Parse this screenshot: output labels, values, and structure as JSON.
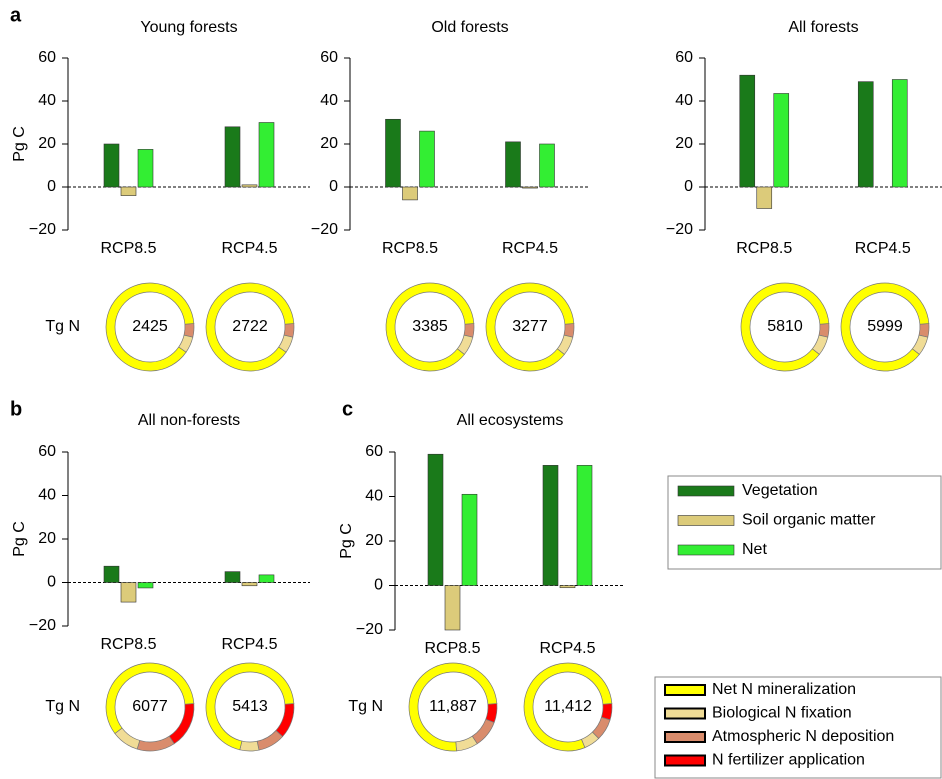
{
  "panel_labels": [
    "a",
    "b",
    "c"
  ],
  "chart_data": [
    {
      "type": "bar",
      "title": "Young forests",
      "ylabel": "Pg C",
      "categories": [
        "RCP8.5",
        "RCP4.5"
      ],
      "series": [
        {
          "name": "Vegetation",
          "color": "#1a7a1a",
          "values": [
            20,
            28
          ]
        },
        {
          "name": "Soil organic matter",
          "color": "#dccb7a",
          "values": [
            -4,
            1
          ]
        },
        {
          "name": "Net",
          "color": "#33ee33",
          "values": [
            17.5,
            30
          ]
        }
      ],
      "ylim": [
        -20,
        60
      ],
      "yticks": [
        {
          "value": -20,
          "label": "−20"
        },
        0,
        20,
        40,
        60
      ]
    },
    {
      "type": "bar",
      "title": "Old forests",
      "categories": [
        "RCP8.5",
        "RCP4.5"
      ],
      "series": [
        {
          "name": "Vegetation",
          "color": "#1a7a1a",
          "values": [
            31.5,
            21
          ]
        },
        {
          "name": "Soil organic matter",
          "color": "#dccb7a",
          "values": [
            -6,
            -0.5
          ]
        },
        {
          "name": "Net",
          "color": "#33ee33",
          "values": [
            26,
            20
          ]
        }
      ],
      "ylim": [
        -20,
        60
      ],
      "yticks": [
        {
          "value": -20,
          "label": "−20"
        },
        0,
        20,
        40,
        60
      ]
    },
    {
      "type": "bar",
      "title": "All forests",
      "categories": [
        "RCP8.5",
        "RCP4.5"
      ],
      "series": [
        {
          "name": "Vegetation",
          "color": "#1a7a1a",
          "values": [
            52,
            49
          ]
        },
        {
          "name": "Soil organic matter",
          "color": "#dccb7a",
          "values": [
            -10,
            0
          ]
        },
        {
          "name": "Net",
          "color": "#33ee33",
          "values": [
            43.5,
            50
          ]
        }
      ],
      "ylim": [
        -20,
        60
      ],
      "yticks": [
        {
          "value": -20,
          "label": "−20"
        },
        0,
        20,
        40,
        60
      ]
    },
    {
      "type": "bar",
      "title": "All non-forests",
      "ylabel": "Pg C",
      "categories": [
        "RCP8.5",
        "RCP4.5"
      ],
      "series": [
        {
          "name": "Vegetation",
          "color": "#1a7a1a",
          "values": [
            7.5,
            5
          ]
        },
        {
          "name": "Soil organic matter",
          "color": "#dccb7a",
          "values": [
            -9,
            -1.5
          ]
        },
        {
          "name": "Net",
          "color": "#33ee33",
          "values": [
            -2.5,
            3.5
          ]
        }
      ],
      "ylim": [
        -20,
        60
      ],
      "yticks": [
        {
          "value": -20,
          "label": "−20"
        },
        0,
        20,
        40,
        60
      ]
    },
    {
      "type": "bar",
      "title": "All ecosystems",
      "ylabel": "Pg C",
      "categories": [
        "RCP8.5",
        "RCP4.5"
      ],
      "series": [
        {
          "name": "Vegetation",
          "color": "#1a7a1a",
          "values": [
            59,
            54
          ]
        },
        {
          "name": "Soil organic matter",
          "color": "#dccb7a",
          "values": [
            -20,
            -1
          ]
        },
        {
          "name": "Net",
          "color": "#33ee33",
          "values": [
            41,
            54
          ]
        }
      ],
      "ylim": [
        -20,
        60
      ],
      "yticks": [
        {
          "value": -20,
          "label": "−20"
        },
        0,
        20,
        40,
        60
      ]
    },
    {
      "type": "donut",
      "label": "Tg N",
      "total": 2425,
      "categories": [
        "Net N mineralization",
        "Biological N fixation",
        "Atmospheric N deposition",
        "N fertilizer application"
      ],
      "colors": [
        "#ffff00",
        "#f0dc96",
        "#d98c6c",
        "#ff0000"
      ],
      "values": [
        89,
        6,
        5,
        0
      ]
    },
    {
      "type": "donut",
      "total": 2722,
      "categories": [
        "Net N mineralization",
        "Biological N fixation",
        "Atmospheric N deposition",
        "N fertilizer application"
      ],
      "colors": [
        "#ffff00",
        "#f0dc96",
        "#d98c6c",
        "#ff0000"
      ],
      "values": [
        89,
        6,
        5,
        0
      ]
    },
    {
      "type": "donut",
      "total": 3385,
      "categories": [
        "Net N mineralization",
        "Biological N fixation",
        "Atmospheric N deposition",
        "N fertilizer application"
      ],
      "colors": [
        "#ffff00",
        "#f0dc96",
        "#d98c6c",
        "#ff0000"
      ],
      "values": [
        88,
        7,
        5,
        0
      ]
    },
    {
      "type": "donut",
      "total": 3277,
      "categories": [
        "Net N mineralization",
        "Biological N fixation",
        "Atmospheric N deposition",
        "N fertilizer application"
      ],
      "colors": [
        "#ffff00",
        "#f0dc96",
        "#d98c6c",
        "#ff0000"
      ],
      "values": [
        88,
        7,
        5,
        0
      ]
    },
    {
      "type": "donut",
      "total": 5810,
      "categories": [
        "Net N mineralization",
        "Biological N fixation",
        "Atmospheric N deposition",
        "N fertilizer application"
      ],
      "colors": [
        "#ffff00",
        "#f0dc96",
        "#d98c6c",
        "#ff0000"
      ],
      "values": [
        88,
        7,
        5,
        0
      ]
    },
    {
      "type": "donut",
      "total": 5999,
      "categories": [
        "Net N mineralization",
        "Biological N fixation",
        "Atmospheric N deposition",
        "N fertilizer application"
      ],
      "colors": [
        "#ffff00",
        "#f0dc96",
        "#d98c6c",
        "#ff0000"
      ],
      "values": [
        88,
        7,
        5,
        0
      ]
    },
    {
      "type": "donut",
      "label": "Tg N",
      "total": 6077,
      "categories": [
        "Net N mineralization",
        "Biological N fixation",
        "Atmospheric N deposition",
        "N fertilizer application"
      ],
      "colors": [
        "#ffff00",
        "#f0dc96",
        "#d98c6c",
        "#ff0000"
      ],
      "values": [
        59,
        10,
        14,
        17
      ]
    },
    {
      "type": "donut",
      "total": 5413,
      "categories": [
        "Net N mineralization",
        "Biological N fixation",
        "Atmospheric N deposition",
        "N fertilizer application"
      ],
      "colors": [
        "#ffff00",
        "#f0dc96",
        "#d98c6c",
        "#ff0000"
      ],
      "values": [
        70,
        7,
        10,
        13
      ]
    },
    {
      "type": "donut",
      "label": "Tg N",
      "total": 11887,
      "total_label": "11,887",
      "categories": [
        "Net N mineralization",
        "Biological N fixation",
        "Atmospheric N deposition",
        "N fertilizer application"
      ],
      "colors": [
        "#ffff00",
        "#f0dc96",
        "#d98c6c",
        "#ff0000"
      ],
      "values": [
        75,
        8,
        10,
        7
      ]
    },
    {
      "type": "donut",
      "total": 11412,
      "total_label": "11,412",
      "categories": [
        "Net N mineralization",
        "Biological N fixation",
        "Atmospheric N deposition",
        "N fertilizer application"
      ],
      "colors": [
        "#ffff00",
        "#f0dc96",
        "#d98c6c",
        "#ff0000"
      ],
      "values": [
        80,
        6,
        8,
        6
      ]
    }
  ]
}
